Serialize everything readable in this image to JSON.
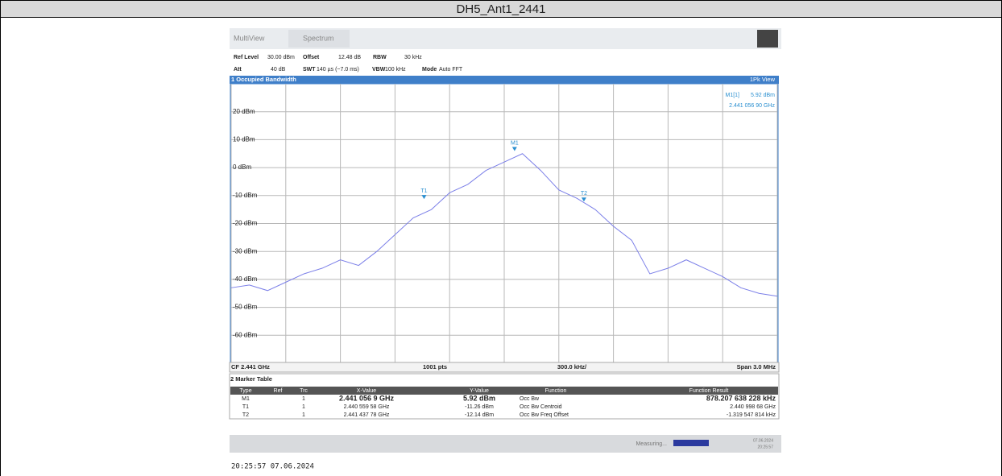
{
  "header": {
    "title": "DH5_Ant1_2441"
  },
  "toolbar": {
    "tabs": [
      "MultiView",
      "Spectrum"
    ]
  },
  "settings": {
    "row1": [
      "Ref Level",
      "30.00 dBm",
      "Offset",
      "12.48 dB",
      "RBW",
      "30 kHz"
    ],
    "row2": [
      "Att",
      "40 dB",
      "SWT",
      "140 µs (~7.0 ms)",
      "VBW",
      "100 kHz",
      "Mode",
      "Auto FFT"
    ]
  },
  "window": {
    "title": "1 Occupied Bandwidth",
    "view": "1Pk View",
    "marker_readout": [
      "M1[1]",
      "5.92 dBm",
      "2.441 056 90 GHz"
    ]
  },
  "chart_data": {
    "type": "line",
    "x": [
      2.4395,
      2.4396,
      2.4397,
      2.4398,
      2.4399,
      2.44,
      2.4401,
      2.4402,
      2.4403,
      2.4404,
      2.4405,
      2.4406,
      2.4407,
      2.4408,
      2.4409,
      2.441,
      2.4411,
      2.4412,
      2.4413,
      2.4414,
      2.4415,
      2.4416,
      2.4417,
      2.4418,
      2.4419,
      2.442,
      2.4421,
      2.4422,
      2.4423,
      2.4424,
      2.4425
    ],
    "series": [
      {
        "name": "1Pk",
        "color": "#7b7fe8",
        "values": [
          -43,
          -42,
          -44,
          -41,
          -38,
          -36,
          -33,
          -35,
          -30,
          -24,
          -18,
          -15,
          -9,
          -6,
          -1,
          2,
          5,
          -1,
          -8,
          -11,
          -15,
          -21,
          -26,
          -38,
          -36,
          -33,
          -36,
          -39,
          -43,
          -45,
          -46
        ]
      }
    ],
    "xlim": [
      2.4395,
      2.4425
    ],
    "xticks": [
      2.4395,
      2.4398,
      2.4401,
      2.4404,
      2.4407,
      2.441,
      2.4413,
      2.4416,
      2.4419,
      2.4422,
      2.4425
    ],
    "ylim": [
      -70,
      30
    ],
    "yticks": [
      {
        "value": 20,
        "label": "20 dBm"
      },
      {
        "value": 10,
        "label": "10 dBm"
      },
      {
        "value": 0,
        "label": "0 dBm"
      },
      {
        "value": -10,
        "label": "-10 dBm"
      },
      {
        "value": -20,
        "label": "-20 dBm"
      },
      {
        "value": -30,
        "label": "-30 dBm"
      },
      {
        "value": -40,
        "label": "-40 dBm"
      },
      {
        "value": -50,
        "label": "-50 dBm"
      },
      {
        "value": -60,
        "label": "-60 dBm"
      }
    ],
    "grid": true,
    "markers": [
      {
        "name": "M1",
        "x": 2.4410569,
        "y": 5.92
      },
      {
        "name": "T1",
        "x": 2.44055958,
        "y": -11.26
      },
      {
        "name": "T2",
        "x": 2.44143778,
        "y": -12.14
      }
    ]
  },
  "footer": [
    "CF 2.441 GHz",
    "1001 pts",
    "300.0 kHz/",
    "Span 3.0 MHz"
  ],
  "marker_table": {
    "title": "2 Marker Table",
    "columns": [
      "Type",
      "Ref",
      "Trc",
      "X-Value",
      "Y-Value",
      "Function",
      "Function Result"
    ],
    "rows": [
      [
        "M1",
        "1",
        "2.441 056 9 GHz",
        "5.92 dBm",
        "Occ Bw",
        "878.207 638 228 kHz"
      ],
      [
        "T1",
        "1",
        "2.440 559 58 GHz",
        "-11.26 dBm",
        "Occ Bw Centroid",
        "2.440 998 68 GHz"
      ],
      [
        "T2",
        "1",
        "2.441 437 78 GHz",
        "-12.14 dBm",
        "Occ Bw Freq Offset",
        "-1.319 547 814 kHz"
      ]
    ]
  },
  "status": {
    "text": "Measuring...",
    "date": "07.06.2024",
    "time": "20:25:57"
  },
  "timestamp": "20:25:57  07.06.2024"
}
